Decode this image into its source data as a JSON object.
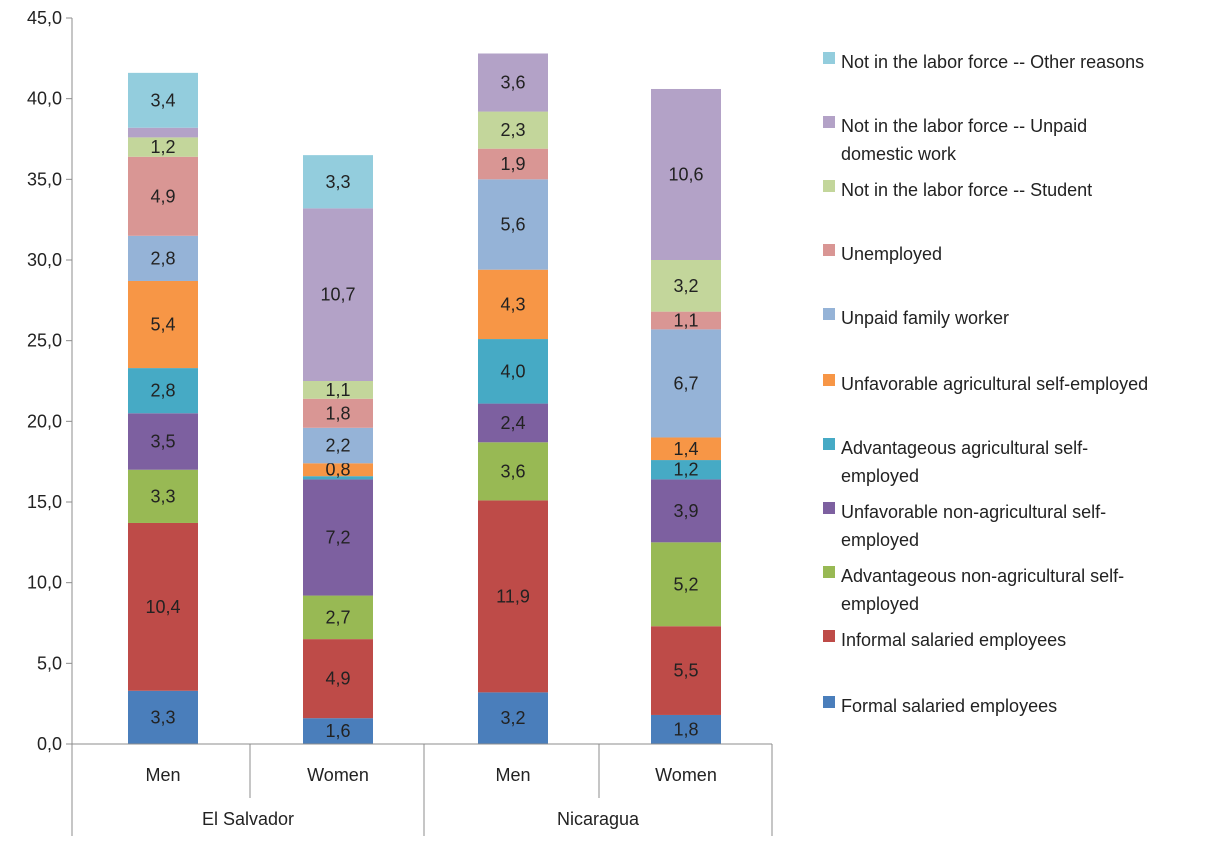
{
  "chart_data": {
    "type": "bar",
    "stacked": true,
    "ylim": [
      0,
      45
    ],
    "y_ticks": [
      "0,0",
      "5,0",
      "10,0",
      "15,0",
      "20,0",
      "25,0",
      "30,0",
      "35,0",
      "40,0",
      "45,0"
    ],
    "y_tick_values": [
      0,
      5,
      10,
      15,
      20,
      25,
      30,
      35,
      40,
      45
    ],
    "groups": [
      {
        "name": "El Salvador",
        "categories": [
          "Men",
          "Women"
        ]
      },
      {
        "name": "Nicaragua",
        "categories": [
          "Men",
          "Women"
        ]
      }
    ],
    "categories": [
      "Men",
      "Women",
      "Men",
      "Women"
    ],
    "legend_position": "right",
    "grid": false,
    "series": [
      {
        "name": "Formal salaried employees",
        "color": "#4a7ebb",
        "values": [
          3.3,
          1.6,
          3.2,
          1.8
        ],
        "labels": [
          "3,3",
          "1,6",
          "3,2",
          "1,8"
        ]
      },
      {
        "name": "Informal salaried employees",
        "color": "#be4b48",
        "values": [
          10.4,
          4.9,
          11.9,
          5.5
        ],
        "labels": [
          "10,4",
          "4,9",
          "11,9",
          "5,5"
        ]
      },
      {
        "name": "Advantageous non-agricultural self-employed",
        "color": "#98b954",
        "values": [
          3.3,
          2.7,
          3.6,
          5.2
        ],
        "labels": [
          "3,3",
          "2,7",
          "3,6",
          "5,2"
        ]
      },
      {
        "name": "Unfavorable non-agricultural self-employed",
        "color": "#7d60a0",
        "values": [
          3.5,
          7.2,
          2.4,
          3.9
        ],
        "labels": [
          "3,5",
          "7,2",
          "2,4",
          "3,9"
        ]
      },
      {
        "name": "Advantageous agricultural self-employed",
        "color": "#46aac5",
        "values": [
          2.8,
          0.2,
          4.0,
          1.2
        ],
        "labels": [
          "2,8",
          "",
          "4,0",
          "1,2"
        ]
      },
      {
        "name": "Unfavorable agricultural self-employed",
        "color": "#f79646",
        "values": [
          5.4,
          0.8,
          4.3,
          1.4
        ],
        "labels": [
          "5,4",
          "0,8",
          "4,3",
          "1,4"
        ]
      },
      {
        "name": "Unpaid family worker",
        "color": "#95b3d7",
        "values": [
          2.8,
          2.2,
          5.6,
          6.7
        ],
        "labels": [
          "2,8",
          "2,2",
          "5,6",
          "6,7"
        ]
      },
      {
        "name": "Unemployed",
        "color": "#d99694",
        "values": [
          4.9,
          1.8,
          1.9,
          1.1
        ],
        "labels": [
          "4,9",
          "1,8",
          "1,9",
          "1,1"
        ]
      },
      {
        "name": "Not in the labor force -- Student",
        "color": "#c3d69b",
        "values": [
          1.2,
          1.1,
          2.3,
          3.2
        ],
        "labels": [
          "1,2",
          "1,1",
          "2,3",
          "3,2"
        ]
      },
      {
        "name": "Not in the labor force -- Unpaid domestic work",
        "color": "#b3a2c7",
        "values": [
          0.6,
          10.7,
          3.6,
          10.6
        ],
        "labels": [
          "",
          "10,7",
          "3,6",
          "10,6"
        ]
      },
      {
        "name": "Not in the labor force -- Other reasons",
        "color": "#93cddd",
        "values": [
          3.4,
          3.3,
          0,
          0
        ],
        "labels": [
          "3,4",
          "3,3",
          "",
          ""
        ]
      }
    ],
    "legend_order": [
      {
        "text": [
          "Not in the labor force -- Other reasons"
        ],
        "color": "#93cddd"
      },
      {
        "text": [
          "Not in the labor force -- Unpaid",
          "domestic work"
        ],
        "color": "#b3a2c7"
      },
      {
        "text": [
          "Not in the labor force -- Student"
        ],
        "color": "#c3d69b"
      },
      {
        "text": [
          "Unemployed"
        ],
        "color": "#d99694"
      },
      {
        "text": [
          "Unpaid family worker"
        ],
        "color": "#95b3d7"
      },
      {
        "text": [
          "Unfavorable agricultural self-employed"
        ],
        "color": "#f79646"
      },
      {
        "text": [
          "Advantageous agricultural self-",
          "employed"
        ],
        "color": "#46aac5"
      },
      {
        "text": [
          "Unfavorable non-agricultural self-",
          "employed"
        ],
        "color": "#7d60a0"
      },
      {
        "text": [
          "Advantageous non-agricultural self-",
          "employed"
        ],
        "color": "#98b954"
      },
      {
        "text": [
          "Informal salaried employees"
        ],
        "color": "#be4b48"
      },
      {
        "text": [
          "Formal salaried employees"
        ],
        "color": "#4a7ebb"
      }
    ]
  }
}
